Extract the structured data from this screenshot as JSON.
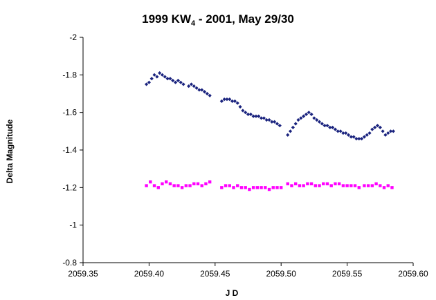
{
  "chart_data": {
    "type": "scatter",
    "title": {
      "main": "1999 KW",
      "sub": "4",
      "rest": " - 2001, May 29/30"
    },
    "xlabel": "J D",
    "ylabel": "Delta Magnitude",
    "xlim": [
      2059.35,
      2059.6
    ],
    "ylim": [
      -0.8,
      -2.0
    ],
    "y_axis_reversed": true,
    "x_ticks": [
      2059.35,
      2059.4,
      2059.45,
      2059.5,
      2059.55,
      2059.6
    ],
    "x_tick_labels": [
      "2059.35",
      "2059.40",
      "2059.45",
      "2059.50",
      "2059.55",
      "2059.60"
    ],
    "y_ticks": [
      -2.0,
      -1.8,
      -1.6,
      -1.4,
      -1.2,
      -1.0,
      -0.8
    ],
    "y_tick_labels": [
      "-2",
      "-1.8",
      "-1.6",
      "-1.4",
      "-1.2",
      "-1",
      "-0.8"
    ],
    "grid": false,
    "legend": "none",
    "series": [
      {
        "color": "#1a237e",
        "marker": "diamond",
        "x": [
          2059.398,
          2059.4,
          2059.402,
          2059.404,
          2059.406,
          2059.408,
          2059.41,
          2059.412,
          2059.414,
          2059.416,
          2059.418,
          2059.42,
          2059.422,
          2059.424,
          2059.426,
          2059.43,
          2059.432,
          2059.434,
          2059.436,
          2059.438,
          2059.44,
          2059.442,
          2059.444,
          2059.446,
          2059.455,
          2059.457,
          2059.459,
          2059.461,
          2059.463,
          2059.465,
          2059.467,
          2059.469,
          2059.471,
          2059.473,
          2059.475,
          2059.477,
          2059.479,
          2059.481,
          2059.483,
          2059.485,
          2059.487,
          2059.489,
          2059.491,
          2059.493,
          2059.495,
          2059.497,
          2059.499,
          2059.505,
          2059.507,
          2059.509,
          2059.511,
          2059.513,
          2059.515,
          2059.517,
          2059.519,
          2059.521,
          2059.523,
          2059.525,
          2059.527,
          2059.529,
          2059.531,
          2059.533,
          2059.535,
          2059.537,
          2059.539,
          2059.541,
          2059.543,
          2059.545,
          2059.547,
          2059.549,
          2059.551,
          2059.553,
          2059.555,
          2059.557,
          2059.559,
          2059.561,
          2059.563,
          2059.565,
          2059.567,
          2059.569,
          2059.571,
          2059.573,
          2059.575,
          2059.577,
          2059.579,
          2059.581,
          2059.583,
          2059.585
        ],
        "y": [
          -1.75,
          -1.76,
          -1.78,
          -1.8,
          -1.79,
          -1.81,
          -1.8,
          -1.79,
          -1.78,
          -1.78,
          -1.77,
          -1.76,
          -1.77,
          -1.76,
          -1.75,
          -1.74,
          -1.75,
          -1.74,
          -1.73,
          -1.72,
          -1.72,
          -1.71,
          -1.7,
          -1.69,
          -1.66,
          -1.67,
          -1.67,
          -1.67,
          -1.66,
          -1.66,
          -1.65,
          -1.63,
          -1.61,
          -1.6,
          -1.59,
          -1.59,
          -1.58,
          -1.58,
          -1.58,
          -1.57,
          -1.57,
          -1.56,
          -1.56,
          -1.55,
          -1.55,
          -1.54,
          -1.53,
          -1.48,
          -1.5,
          -1.52,
          -1.54,
          -1.56,
          -1.57,
          -1.58,
          -1.59,
          -1.6,
          -1.59,
          -1.57,
          -1.56,
          -1.55,
          -1.54,
          -1.53,
          -1.53,
          -1.52,
          -1.52,
          -1.51,
          -1.5,
          -1.5,
          -1.49,
          -1.49,
          -1.48,
          -1.47,
          -1.47,
          -1.46,
          -1.46,
          -1.46,
          -1.47,
          -1.48,
          -1.49,
          -1.51,
          -1.52,
          -1.53,
          -1.52,
          -1.5,
          -1.48,
          -1.49,
          -1.5,
          -1.5
        ]
      },
      {
        "color": "#ff00ff",
        "marker": "square",
        "x": [
          2059.398,
          2059.401,
          2059.404,
          2059.407,
          2059.41,
          2059.413,
          2059.416,
          2059.419,
          2059.422,
          2059.425,
          2059.428,
          2059.431,
          2059.434,
          2059.437,
          2059.44,
          2059.443,
          2059.446,
          2059.455,
          2059.458,
          2059.461,
          2059.464,
          2059.467,
          2059.47,
          2059.473,
          2059.476,
          2059.479,
          2059.482,
          2059.485,
          2059.488,
          2059.491,
          2059.494,
          2059.497,
          2059.5,
          2059.505,
          2059.508,
          2059.511,
          2059.514,
          2059.517,
          2059.52,
          2059.523,
          2059.526,
          2059.529,
          2059.532,
          2059.535,
          2059.538,
          2059.541,
          2059.544,
          2059.547,
          2059.55,
          2059.553,
          2059.556,
          2059.559,
          2059.563,
          2059.566,
          2059.569,
          2059.572,
          2059.575,
          2059.578,
          2059.581,
          2059.584
        ],
        "y": [
          -1.21,
          -1.23,
          -1.21,
          -1.2,
          -1.22,
          -1.23,
          -1.22,
          -1.21,
          -1.21,
          -1.2,
          -1.21,
          -1.21,
          -1.22,
          -1.22,
          -1.21,
          -1.22,
          -1.23,
          -1.2,
          -1.21,
          -1.21,
          -1.2,
          -1.21,
          -1.2,
          -1.2,
          -1.19,
          -1.2,
          -1.2,
          -1.2,
          -1.2,
          -1.19,
          -1.2,
          -1.2,
          -1.2,
          -1.22,
          -1.21,
          -1.22,
          -1.21,
          -1.21,
          -1.22,
          -1.22,
          -1.21,
          -1.21,
          -1.22,
          -1.22,
          -1.21,
          -1.22,
          -1.22,
          -1.21,
          -1.21,
          -1.21,
          -1.21,
          -1.2,
          -1.21,
          -1.21,
          -1.21,
          -1.22,
          -1.21,
          -1.2,
          -1.21,
          -1.2
        ]
      }
    ]
  }
}
